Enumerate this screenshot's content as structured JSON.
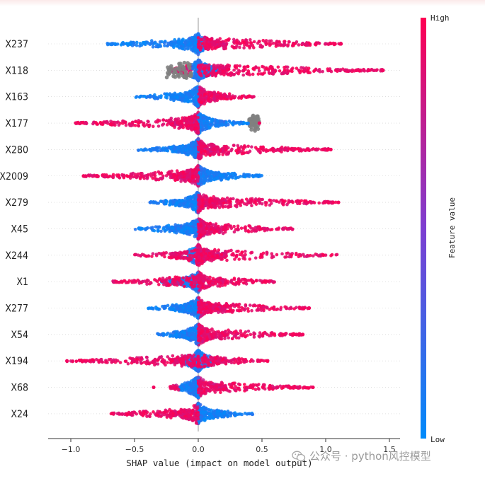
{
  "chart_data": {
    "type": "scatter",
    "subtype": "shap-beeswarm-summary",
    "xlabel": "SHAP value (impact on model output)",
    "xlim": [
      -1.2,
      1.57
    ],
    "xticks": [
      -1.0,
      -0.5,
      0.0,
      0.5,
      1.0,
      1.5
    ],
    "xtick_labels": [
      "−1.0",
      "−0.5",
      "0.0",
      "0.5",
      "1.0",
      "1.5"
    ],
    "zero_line": 0.0,
    "colorbar": {
      "label": "Feature value",
      "high": "High",
      "low": "Low",
      "colors": [
        "#ff0052",
        "#7d3ed1",
        "#008bfb"
      ]
    },
    "features": [
      {
        "name": "X237",
        "min": -0.74,
        "max": 1.12,
        "blue": [
          -0.74,
          0.05
        ],
        "red": [
          0.0,
          1.12
        ],
        "outliers": [
          1.12
        ]
      },
      {
        "name": "X118",
        "min": -0.25,
        "max": 1.45,
        "blue": [
          -0.05,
          0.15
        ],
        "red": [
          0.15,
          1.45
        ],
        "grey": [
          -0.25,
          -0.05
        ],
        "outliers": [
          1.24,
          1.45
        ]
      },
      {
        "name": "X163",
        "min": -0.5,
        "max": 0.45,
        "blue": [
          -0.5,
          0.0
        ],
        "red": [
          0.0,
          0.45
        ]
      },
      {
        "name": "X177",
        "min": -0.97,
        "max": 0.48,
        "blue": [
          0.0,
          0.4
        ],
        "red": [
          -0.97,
          0.0
        ],
        "grey": [
          0.4,
          0.48
        ],
        "outliers": [
          0.48
        ]
      },
      {
        "name": "X280",
        "min": -0.47,
        "max": 1.04,
        "blue": [
          -0.47,
          0.0
        ],
        "red": [
          0.0,
          1.04
        ],
        "outliers": [
          0.98,
          1.04
        ]
      },
      {
        "name": "X2009",
        "min": -0.9,
        "max": 0.5,
        "blue": [
          0.0,
          0.5
        ],
        "red": [
          -0.9,
          0.0
        ],
        "outliers": [
          -0.9
        ]
      },
      {
        "name": "X279",
        "min": -0.38,
        "max": 1.1,
        "blue": [
          -0.38,
          0.0
        ],
        "red": [
          0.0,
          1.1
        ],
        "outliers": [
          1.02,
          1.1
        ]
      },
      {
        "name": "X45",
        "min": -0.5,
        "max": 0.75,
        "blue": [
          -0.5,
          0.0
        ],
        "red": [
          0.0,
          0.75
        ]
      },
      {
        "name": "X244",
        "min": -0.5,
        "max": 1.1,
        "blue": [
          -0.08,
          -0.02
        ],
        "red": [
          -0.5,
          1.1
        ],
        "gaps": true
      },
      {
        "name": "X1",
        "min": -0.68,
        "max": 0.6,
        "blue": [
          -0.3,
          0.0
        ],
        "red": [
          -0.68,
          0.6
        ]
      },
      {
        "name": "X277",
        "min": -0.4,
        "max": 0.87,
        "blue": [
          -0.4,
          0.0
        ],
        "red": [
          0.0,
          0.87
        ],
        "outliers": [
          0.8,
          0.87
        ]
      },
      {
        "name": "X54",
        "min": -0.32,
        "max": 0.82,
        "blue": [
          -0.32,
          0.0
        ],
        "red": [
          0.0,
          0.82
        ],
        "outliers": [
          0.77,
          0.82
        ]
      },
      {
        "name": "X194",
        "min": -1.03,
        "max": 0.55,
        "blue": [
          -0.1,
          0.1
        ],
        "red": [
          -1.03,
          0.55
        ],
        "outliers": [
          -1.03
        ]
      },
      {
        "name": "X68",
        "min": -0.35,
        "max": 0.9,
        "blue": [
          -0.15,
          0.0
        ],
        "red": [
          0.0,
          0.9
        ],
        "outliers": [
          -0.35,
          0.9
        ]
      },
      {
        "name": "X24",
        "min": -0.7,
        "max": 0.43,
        "blue": [
          0.0,
          0.43
        ],
        "red": [
          -0.7,
          0.0
        ]
      }
    ]
  },
  "watermark": {
    "text": "公众号 · python风控模型",
    "icon": "wechat-icon"
  }
}
